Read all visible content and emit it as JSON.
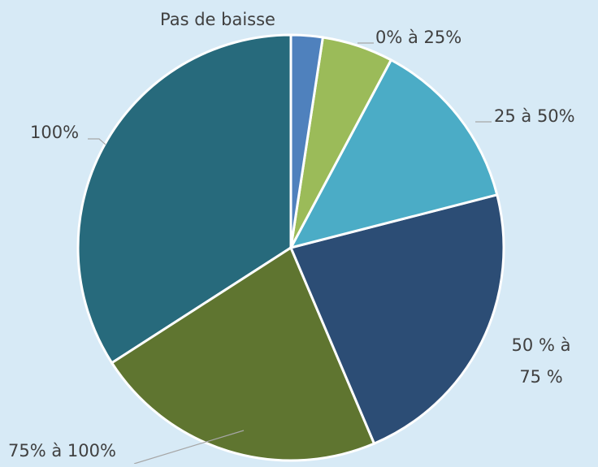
{
  "chart_data": {
    "type": "pie",
    "categories": [
      "Pas de baisse",
      "0% à 25%",
      "25 à 50%",
      "50 % à 75 %",
      "75% à 100%",
      "100%"
    ],
    "values": [
      2.4,
      5.4,
      13.2,
      22.6,
      22.3,
      34.1
    ],
    "colors": [
      "#4f81bd",
      "#9bbb59",
      "#4bacc6",
      "#2c4d75",
      "#5f7530",
      "#276a7c"
    ]
  }
}
